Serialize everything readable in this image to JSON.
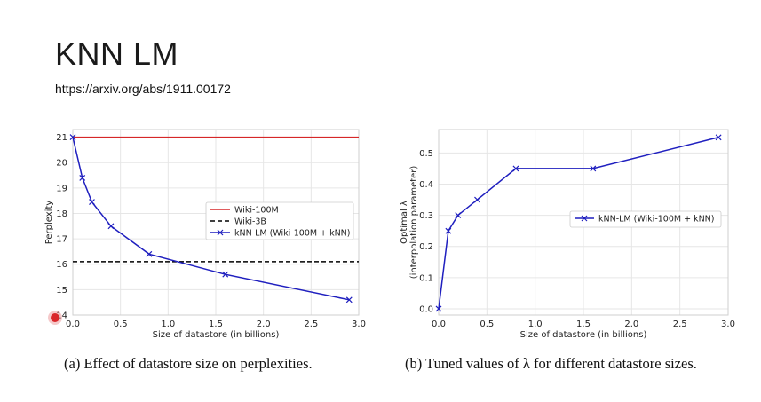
{
  "slide": {
    "title": "KNN LM",
    "link": "https://arxiv.org/abs/1911.00172"
  },
  "chart_data": [
    {
      "type": "line",
      "title": "",
      "caption": "(a) Effect of datastore size on perplexities.",
      "xlabel": "Size of datastore (in billions)",
      "ylabel": "Perplexity",
      "xlim": [
        0.0,
        3.0
      ],
      "ylim": [
        14,
        21.3
      ],
      "xticks": [
        "0.0",
        "0.5",
        "1.0",
        "1.5",
        "2.0",
        "2.5",
        "3.0"
      ],
      "yticks": [
        "14",
        "15",
        "16",
        "17",
        "18",
        "19",
        "20",
        "21"
      ],
      "grid": true,
      "legend_position": "center-right",
      "series": [
        {
          "name": "Wiki-100M",
          "style": "solid",
          "color": "#d62728",
          "x": [
            0.0,
            3.0
          ],
          "y": [
            21.0,
            21.0
          ]
        },
        {
          "name": "Wiki-3B",
          "style": "dashed",
          "color": "#000000",
          "x": [
            0.0,
            3.0
          ],
          "y": [
            16.1,
            16.1
          ]
        },
        {
          "name": "kNN-LM (Wiki-100M + kNN)",
          "style": "solid",
          "marker": "x",
          "color": "#1f1fbf",
          "x": [
            0.0,
            0.1,
            0.2,
            0.4,
            0.8,
            1.6,
            2.9
          ],
          "y": [
            21.0,
            19.4,
            18.45,
            17.5,
            16.4,
            15.6,
            14.6
          ]
        }
      ]
    },
    {
      "type": "line",
      "title": "",
      "caption": "(b) Tuned values of λ for different datastore sizes.",
      "xlabel": "Size of datastore (in billions)",
      "ylabel": "Optimal λ",
      "ylabel2": "(interpolation parameter)",
      "xlim": [
        0.0,
        3.0
      ],
      "ylim": [
        -0.02,
        0.575
      ],
      "xticks": [
        "0.0",
        "0.5",
        "1.0",
        "1.5",
        "2.0",
        "2.5",
        "3.0"
      ],
      "yticks": [
        "0.0",
        "0.1",
        "0.2",
        "0.3",
        "0.4",
        "0.5"
      ],
      "grid": true,
      "legend_position": "center-right",
      "series": [
        {
          "name": "kNN-LM (Wiki-100M + kNN)",
          "style": "solid",
          "marker": "x",
          "color": "#1f1fbf",
          "x": [
            0.0,
            0.1,
            0.2,
            0.4,
            0.8,
            1.6,
            2.9
          ],
          "y": [
            0.0,
            0.25,
            0.3,
            0.35,
            0.45,
            0.45,
            0.55
          ]
        }
      ]
    }
  ]
}
